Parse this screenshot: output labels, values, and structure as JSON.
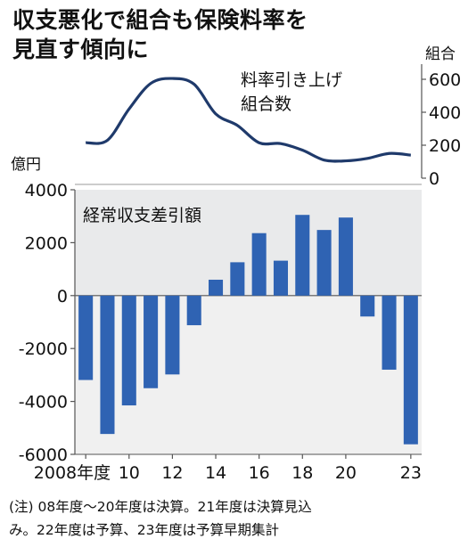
{
  "title_lines": [
    "収支悪化で組合も保険料率を",
    "見直す傾向に"
  ],
  "note_lines": [
    "(注) 08年度～20年度は決算。21年度は決算見込",
    "み。22年度は予算、23年度は予算早期集計"
  ],
  "colors": {
    "bar": "#2f63b3",
    "line": "#1f3a6b",
    "panel_top": "#e9eaeb",
    "panel_bottom": "#f0f0f0",
    "grid": "#777777"
  },
  "chart_data": [
    {
      "type": "line",
      "label_lines": [
        "料率引き上げ",
        "組合数"
      ],
      "unit": "組合",
      "x": [
        2008,
        2009,
        2010,
        2011,
        2012,
        2013,
        2014,
        2015,
        2016,
        2017,
        2018,
        2019,
        2020,
        2021,
        2022,
        2023
      ],
      "values": [
        215,
        230,
        420,
        575,
        605,
        570,
        390,
        320,
        215,
        210,
        170,
        110,
        105,
        120,
        150,
        140
      ],
      "ylim": [
        0,
        600
      ],
      "yticks": [
        0,
        200,
        400,
        600
      ]
    },
    {
      "type": "bar",
      "label": "経常収支差引額",
      "unit": "億円",
      "x": [
        2008,
        2009,
        2010,
        2011,
        2012,
        2013,
        2014,
        2015,
        2016,
        2017,
        2018,
        2019,
        2020,
        2021,
        2022,
        2023
      ],
      "values": [
        -3190,
        -5230,
        -4150,
        -3500,
        -2980,
        -1120,
        600,
        1260,
        2360,
        1320,
        3050,
        2480,
        2950,
        -790,
        -2800,
        -5620
      ],
      "ylim": [
        -6000,
        4000
      ],
      "yticks": [
        -6000,
        -4000,
        -2000,
        0,
        2000,
        4000
      ],
      "ytick_labels": [
        "-6000",
        "-4000",
        "-2000",
        "0",
        "2000",
        "4000"
      ],
      "xtick_labels": [
        {
          "year": 2008,
          "text": "2008年度"
        },
        {
          "year": 2010,
          "text": "10"
        },
        {
          "year": 2012,
          "text": "12"
        },
        {
          "year": 2014,
          "text": "14"
        },
        {
          "year": 2016,
          "text": "16"
        },
        {
          "year": 2018,
          "text": "18"
        },
        {
          "year": 2020,
          "text": "20"
        },
        {
          "year": 2023,
          "text": "23"
        }
      ]
    }
  ]
}
